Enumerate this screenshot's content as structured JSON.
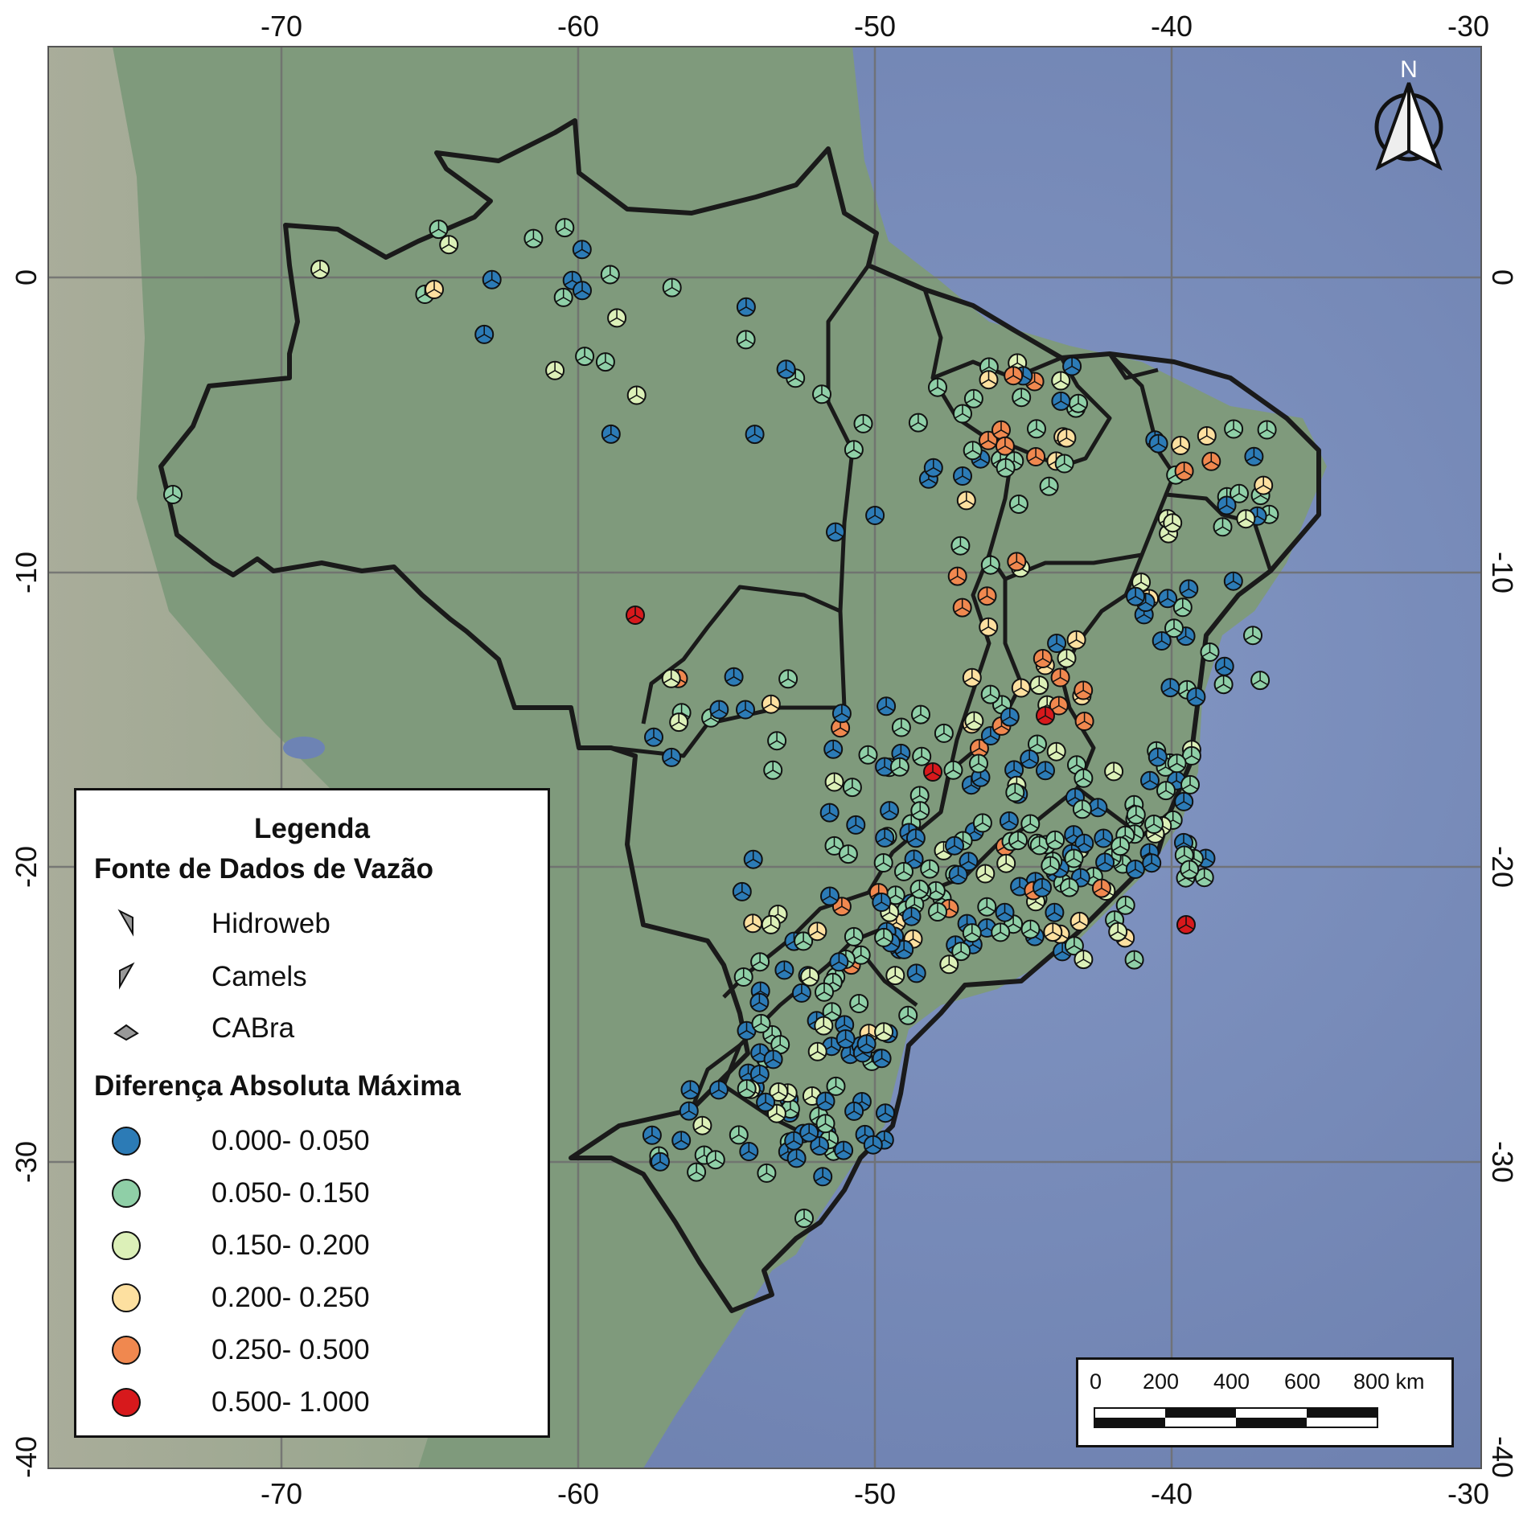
{
  "map": {
    "x_ticks": [
      "-70",
      "-60",
      "-50",
      "-40",
      "-30"
    ],
    "y_ticks": [
      "0",
      "-10",
      "-20",
      "-30",
      "-40"
    ],
    "north_label": "N",
    "basemap_colors": {
      "ocean": "#7f93c2",
      "land": "#7f9a7c",
      "boundary": "#1a1a1a",
      "grid": "#6e6e6e"
    }
  },
  "legend": {
    "title": "Legenda",
    "subtitle_source": "Fonte de Dados de Vazão",
    "sources": [
      {
        "label": "Hidroweb",
        "icon": "hidroweb-wedge-icon"
      },
      {
        "label": "Camels",
        "icon": "camels-wedge-icon"
      },
      {
        "label": "CABra",
        "icon": "cabra-wedge-icon"
      }
    ],
    "subtitle_diff": "Diferença Absoluta Máxima",
    "classes": [
      {
        "label": "0.000- 0.050",
        "color": "#2c7bb6"
      },
      {
        "label": "0.050- 0.150",
        "color": "#8fcfa7"
      },
      {
        "label": "0.150- 0.200",
        "color": "#dcf0b8"
      },
      {
        "label": "0.200- 0.250",
        "color": "#fde0a0"
      },
      {
        "label": "0.250- 0.500",
        "color": "#f0884f"
      },
      {
        "label": "0.500- 1.000",
        "color": "#d7191c"
      }
    ]
  },
  "scalebar": {
    "labels": [
      "0",
      "200",
      "400",
      "600",
      "800 km"
    ]
  }
}
